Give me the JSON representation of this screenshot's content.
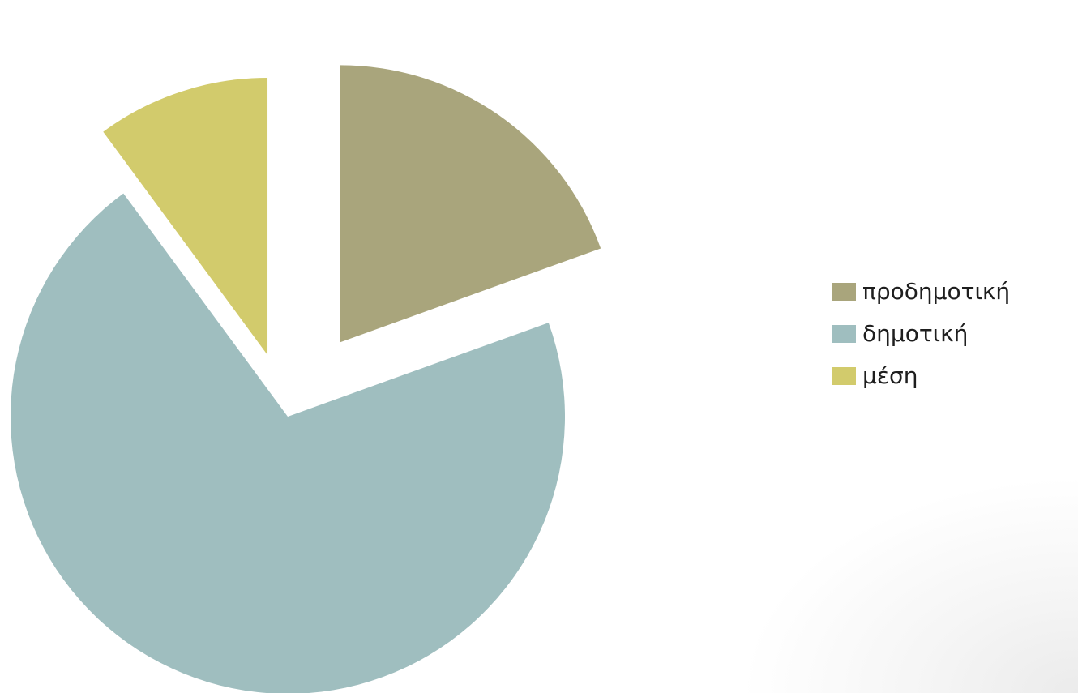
{
  "chart_data": {
    "type": "pie",
    "exploded": true,
    "categories": [
      "προδημοτική",
      "δημοτική",
      "μέση"
    ],
    "values": [
      19.5,
      70.4,
      10.1
    ],
    "colors": [
      "#a9a57c",
      "#9fbebf",
      "#d2cb6c"
    ],
    "title": "",
    "legend_position": "right"
  },
  "legend": {
    "items": [
      {
        "label": "προδημοτική",
        "color": "#a9a57c"
      },
      {
        "label": "δημοτική",
        "color": "#9fbebf"
      },
      {
        "label": "μέση",
        "color": "#d2cb6c"
      }
    ]
  }
}
